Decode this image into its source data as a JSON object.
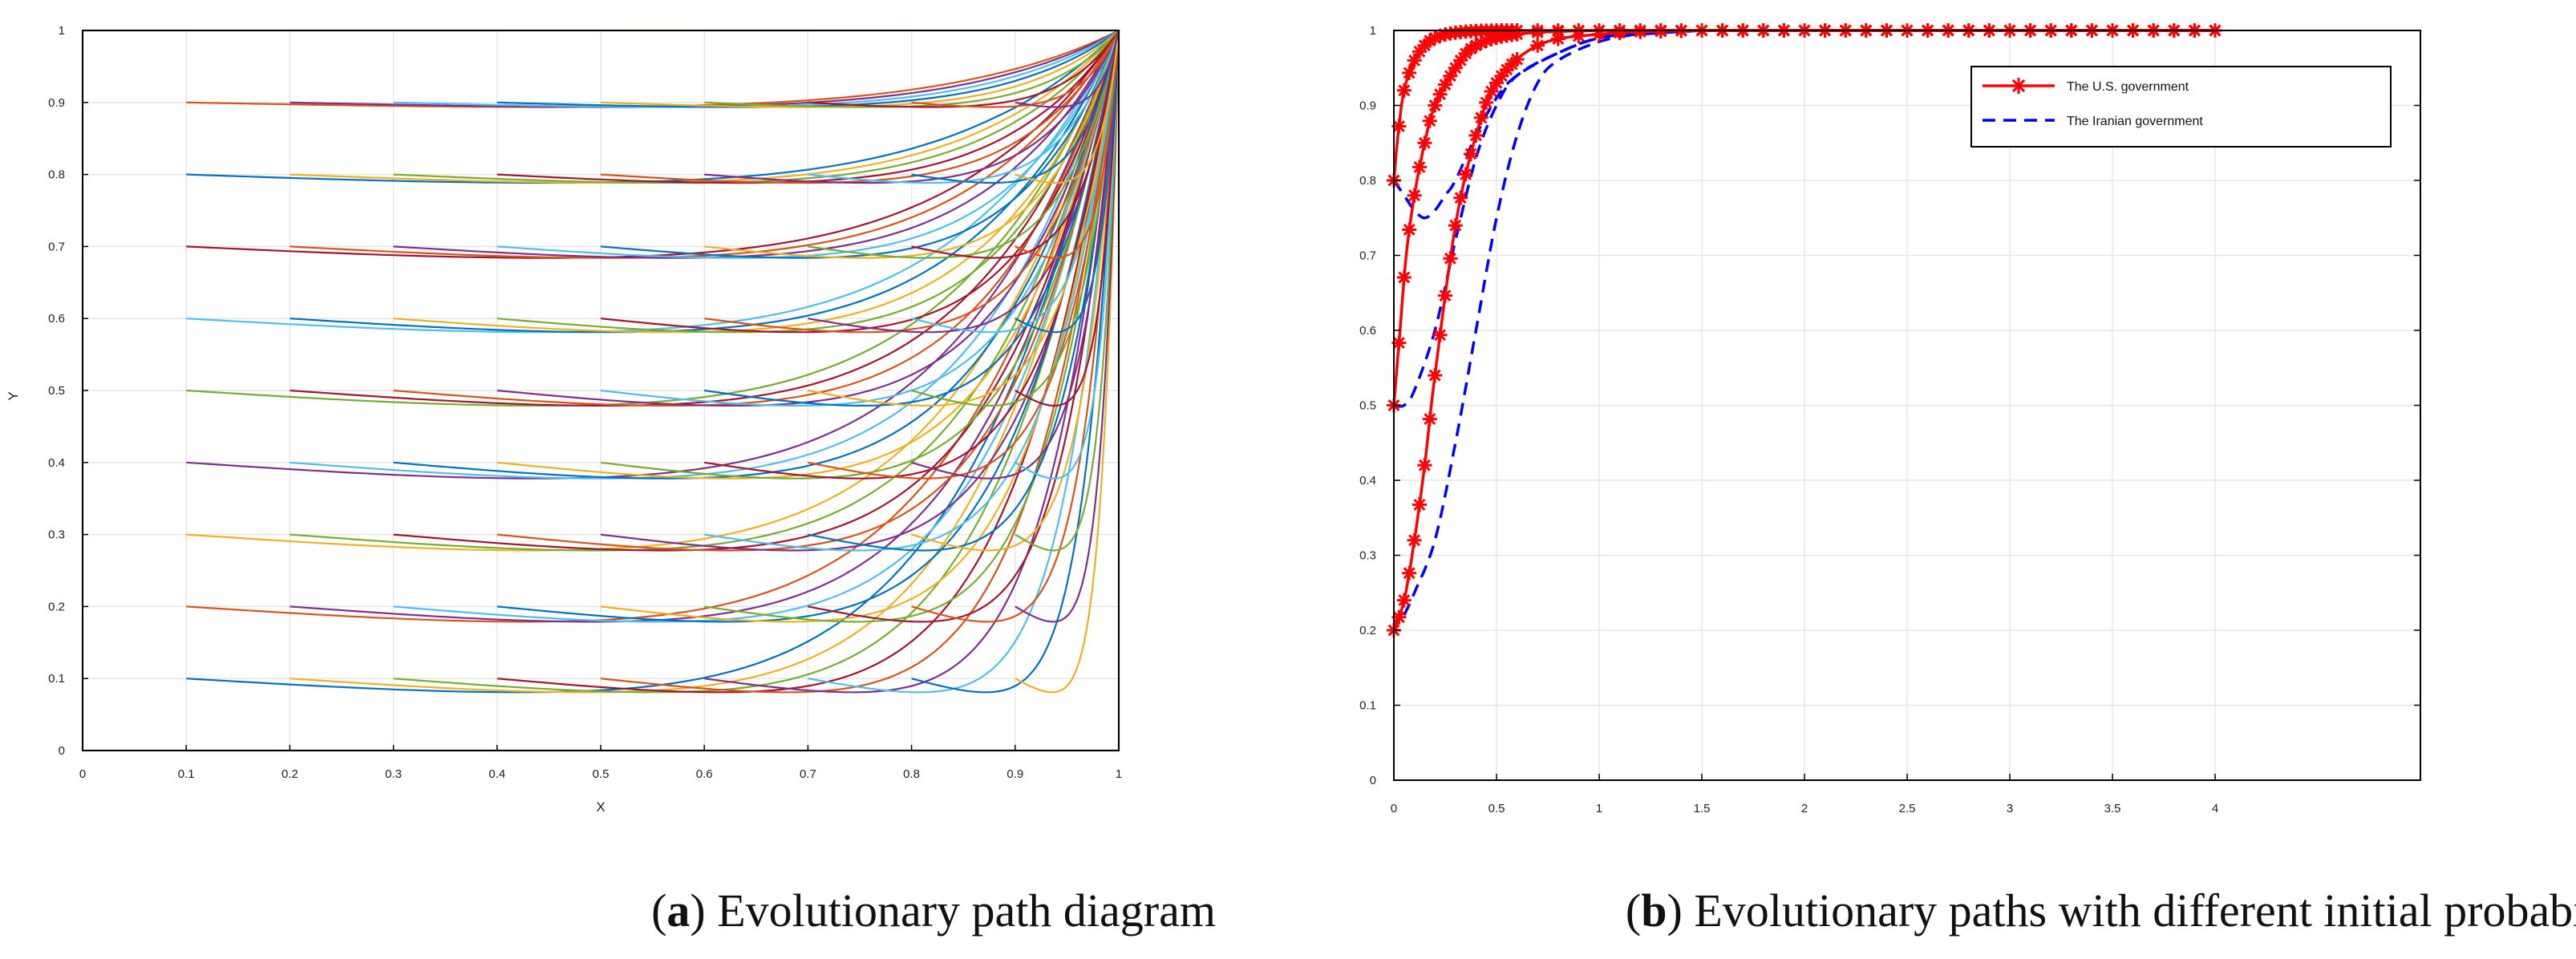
{
  "chart_data": [
    {
      "type": "line",
      "panel": "a",
      "xlabel": "X",
      "ylabel": "Y",
      "xlim": [
        0,
        1
      ],
      "ylim": [
        0,
        1
      ],
      "xticks": [
        "0",
        "0.1",
        "0.2",
        "0.3",
        "0.4",
        "0.5",
        "0.6",
        "0.7",
        "0.8",
        "0.9",
        "1"
      ],
      "yticks": [
        "0",
        "0.1",
        "0.2",
        "0.3",
        "0.4",
        "0.5",
        "0.6",
        "0.7",
        "0.8",
        "0.9",
        "1"
      ],
      "grid": true,
      "description_series": "Family of evolutionary trajectories starting at x0 in {0.1..0.9} and y0 in {0.1..0.9}; each dips slightly then converges to (1,1).",
      "start_x": [
        0.1,
        0.2,
        0.3,
        0.4,
        0.5,
        0.6,
        0.7,
        0.8,
        0.9
      ],
      "start_y": [
        0.1,
        0.2,
        0.3,
        0.4,
        0.5,
        0.6,
        0.7,
        0.8,
        0.9
      ],
      "end_point": [
        1,
        1
      ],
      "colors": [
        "#0072BD",
        "#D95319",
        "#EDB120",
        "#7E2F8E",
        "#77AC30",
        "#4DBEEE",
        "#A2142F"
      ]
    },
    {
      "type": "line",
      "panel": "b",
      "xlim": [
        0,
        5
      ],
      "ylim": [
        0,
        1
      ],
      "xticks": [
        "0",
        "0.5",
        "1",
        "1.5",
        "2",
        "2.5",
        "3",
        "3.5",
        "4"
      ],
      "yticks": [
        "0",
        "0.1",
        "0.2",
        "0.3",
        "0.4",
        "0.5",
        "0.6",
        "0.7",
        "0.8",
        "0.9",
        "1"
      ],
      "grid": true,
      "legend": [
        "The U.S. government",
        "The Iranian government"
      ],
      "legend_position": "top-right",
      "series": [
        {
          "name": "The U.S. government",
          "style": "solid-star",
          "color": "#ff0000",
          "x": [
            0,
            0.05,
            0.1,
            0.15,
            0.2,
            0.3,
            0.4,
            0.5,
            0.7,
            1,
            1.5,
            2,
            3,
            4
          ],
          "y": [
            0.2,
            0.24,
            0.32,
            0.42,
            0.54,
            0.74,
            0.86,
            0.93,
            0.98,
            0.995,
            1,
            1,
            1,
            1
          ]
        },
        {
          "name": "The U.S. government",
          "style": "solid-star",
          "color": "#ff0000",
          "x": [
            0,
            0.03,
            0.06,
            0.1,
            0.15,
            0.2,
            0.3,
            0.4,
            0.6,
            1,
            1.5,
            2,
            3,
            4
          ],
          "y": [
            0.5,
            0.6,
            0.7,
            0.78,
            0.85,
            0.9,
            0.95,
            0.98,
            0.995,
            1,
            1,
            1,
            1,
            1
          ]
        },
        {
          "name": "The U.S. government",
          "style": "solid-star",
          "color": "#ff0000",
          "x": [
            0,
            0.02,
            0.05,
            0.1,
            0.15,
            0.2,
            0.3,
            0.5,
            1,
            1.5,
            2,
            3,
            4
          ],
          "y": [
            0.8,
            0.86,
            0.92,
            0.96,
            0.98,
            0.99,
            0.997,
            1,
            1,
            1,
            1,
            1,
            1
          ]
        },
        {
          "name": "The Iranian government",
          "style": "dashed",
          "color": "#0000ff",
          "x": [
            0.05,
            0.1,
            0.2,
            0.3,
            0.4,
            0.5,
            0.6,
            0.7,
            0.8,
            1,
            1.2,
            1.5
          ],
          "y": [
            0.22,
            0.25,
            0.32,
            0.45,
            0.6,
            0.75,
            0.86,
            0.93,
            0.96,
            0.985,
            0.995,
            1
          ]
        },
        {
          "name": "The Iranian government",
          "style": "dashed",
          "color": "#0000ff",
          "x": [
            0,
            0.05,
            0.1,
            0.2,
            0.3,
            0.4,
            0.5,
            0.6,
            0.8,
            1,
            1.2,
            1.5
          ],
          "y": [
            0.5,
            0.5,
            0.52,
            0.6,
            0.72,
            0.83,
            0.9,
            0.94,
            0.97,
            0.99,
            0.995,
            1
          ]
        },
        {
          "name": "The Iranian government",
          "style": "dashed",
          "color": "#0000ff",
          "x": [
            0,
            0.05,
            0.1,
            0.15,
            0.2,
            0.25,
            0.3,
            0.4,
            0.5,
            0.6,
            0.8,
            1,
            1.3
          ],
          "y": [
            0.8,
            0.78,
            0.76,
            0.75,
            0.76,
            0.78,
            0.8,
            0.86,
            0.91,
            0.94,
            0.97,
            0.99,
            1
          ]
        }
      ]
    }
  ],
  "captions": {
    "a_letter": "a",
    "a_text": " Evolutionary path diagram",
    "b_letter": "b",
    "b_text": " Evolutionary paths with different initial probabilities"
  }
}
